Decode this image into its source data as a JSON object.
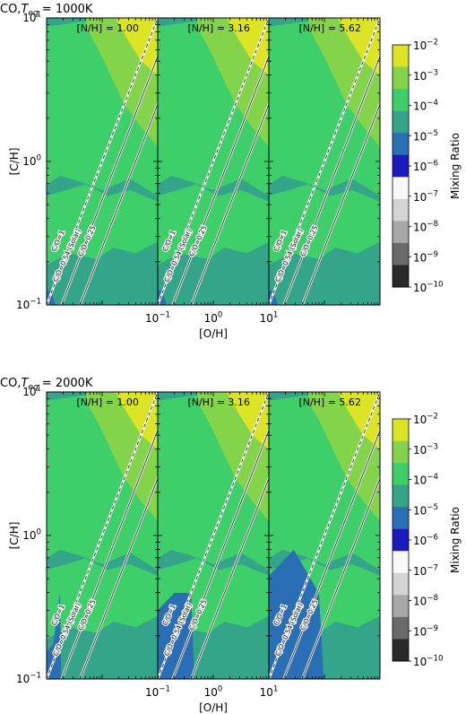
{
  "chart_data": [
    {
      "type": "heatmap",
      "title": "CO,",
      "title_var": "T",
      "title_sub": "eq",
      "title_value": " = 1000K",
      "ylabel": "[C/H]",
      "xlabel": "[O/H]",
      "scale": "log",
      "xlim": [
        0.1,
        10
      ],
      "ylim": [
        0.1,
        10
      ],
      "x_ticks": [
        "10",
        "10",
        "10"
      ],
      "x_tick_exps": [
        "−1",
        "0",
        "1"
      ],
      "y_ticks": [
        "10",
        "10",
        "10"
      ],
      "y_tick_exps": [
        "−1",
        "0",
        "1"
      ],
      "panels": [
        {
          "label": "[N/H] = 1.00",
          "n_over_h": 1.0
        },
        {
          "label": "[N/H] = 3.16",
          "n_over_h": 3.16
        },
        {
          "label": "[N/H] = 5.62",
          "n_over_h": 5.62
        }
      ],
      "lines": [
        {
          "label": "C/O=1",
          "c_over_o": 1.0,
          "style": "dashed"
        },
        {
          "label": "C/O=0.54 (Solar)",
          "c_over_o": 0.54,
          "style": "solid"
        },
        {
          "label": "C/O=0.25",
          "c_over_o": 0.25,
          "style": "solid"
        }
      ]
    },
    {
      "type": "heatmap",
      "title": "CO,",
      "title_var": "T",
      "title_sub": "eq",
      "title_value": " = 2000K",
      "ylabel": "[C/H]",
      "xlabel": "[O/H]",
      "scale": "log",
      "xlim": [
        0.1,
        10
      ],
      "ylim": [
        0.1,
        10
      ],
      "x_ticks": [
        "10",
        "10",
        "10"
      ],
      "x_tick_exps": [
        "−1",
        "0",
        "1"
      ],
      "y_ticks": [
        "10",
        "10",
        "10"
      ],
      "y_tick_exps": [
        "−1",
        "0",
        "1"
      ],
      "panels": [
        {
          "label": "[N/H] = 1.00",
          "n_over_h": 1.0
        },
        {
          "label": "[N/H] = 3.16",
          "n_over_h": 3.16
        },
        {
          "label": "[N/H] = 5.62",
          "n_over_h": 5.62
        }
      ],
      "lines": [
        {
          "label": "C/O=1",
          "c_over_o": 1.0,
          "style": "dashed"
        },
        {
          "label": "C/O=0.54 (Solar)",
          "c_over_o": 0.54,
          "style": "solid"
        },
        {
          "label": "C/O=0.25",
          "c_over_o": 0.25,
          "style": "solid"
        }
      ]
    }
  ],
  "colorbar": {
    "label": "Mixing Ratio",
    "levels": [
      {
        "label": "10",
        "exp": "−2",
        "color": "#fde725"
      },
      {
        "label": "10",
        "exp": "−3",
        "color": "#b5de2b"
      },
      {
        "label": "10",
        "exp": "−4",
        "color": "#5ec962"
      },
      {
        "label": "10",
        "exp": "−5",
        "color": "#21918c"
      },
      {
        "label": "10",
        "exp": "−6",
        "color": "#2c4fa8"
      },
      {
        "label": "10",
        "exp": "−7",
        "color": "#1f1fb4"
      },
      {
        "label": "10",
        "exp": "−8",
        "color": "#f4f4f4"
      },
      {
        "label": "10",
        "exp": "−9",
        "color": "#c8c8c8"
      },
      {
        "label": "10",
        "exp": "−10",
        "color": "#8c8c8c"
      }
    ],
    "bands": [
      "#dbe526",
      "#84d44b",
      "#3fcf6a",
      "#35a58a",
      "#2a6eb6",
      "#1c1cbe",
      "#f8f8f8",
      "#d4d4d4",
      "#a8a8a8",
      "#6a6a6a",
      "#2a2a2a"
    ]
  }
}
